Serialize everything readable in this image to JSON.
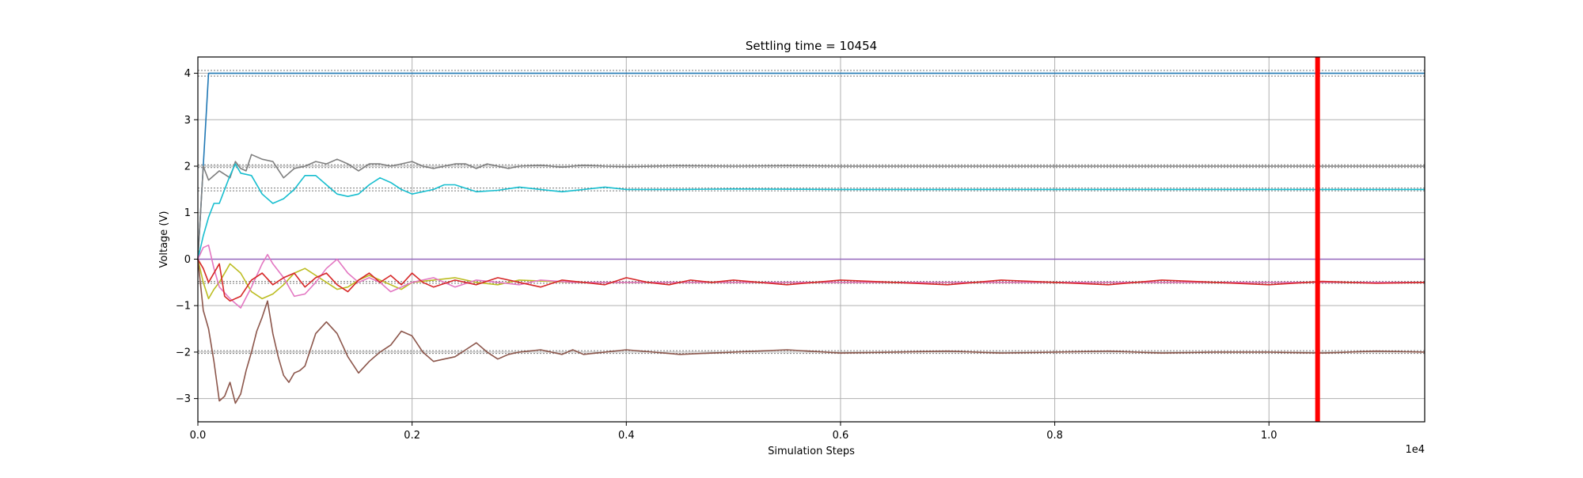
{
  "chart_data": {
    "type": "line",
    "title": "Settling time = 10454",
    "xlabel": "Simulation Steps",
    "ylabel": "Voltage (V)",
    "x_offset_label": "1e4",
    "xlim": [
      0,
      11454
    ],
    "ylim": [
      -3.5,
      4.35
    ],
    "grid": true,
    "legend": "none",
    "x_ticks": [
      {
        "value": 0,
        "label": "0.0"
      },
      {
        "value": 2000,
        "label": "0.2"
      },
      {
        "value": 4000,
        "label": "0.4"
      },
      {
        "value": 6000,
        "label": "0.6"
      },
      {
        "value": 8000,
        "label": "0.8"
      },
      {
        "value": 10000,
        "label": "1.0"
      }
    ],
    "y_ticks": [
      {
        "value": -3,
        "label": "−3"
      },
      {
        "value": -2,
        "label": "−2"
      },
      {
        "value": -1,
        "label": "−1"
      },
      {
        "value": 0,
        "label": "0"
      },
      {
        "value": 1,
        "label": "1"
      },
      {
        "value": 2,
        "label": "2"
      },
      {
        "value": 3,
        "label": "3"
      },
      {
        "value": 4,
        "label": "4"
      }
    ],
    "settling_line": {
      "x": 10454,
      "color": "#ff0000"
    },
    "tolerance_bands": [
      {
        "lower": 3.94,
        "upper": 4.06
      },
      {
        "lower": 1.97,
        "upper": 2.03
      },
      {
        "lower": 1.47,
        "upper": 1.53
      },
      {
        "lower": -0.52,
        "upper": -0.48
      },
      {
        "lower": -2.03,
        "upper": -1.97
      }
    ],
    "series": [
      {
        "color": "#1f77b4",
        "x": [
          0,
          50,
          100,
          200,
          400,
          1000,
          3000,
          6000,
          9000,
          11454
        ],
        "y": [
          0,
          2.0,
          4.0,
          4.0,
          4.0,
          4.0,
          4.0,
          4.0,
          4.0,
          4.0
        ]
      },
      {
        "color": "#7f7f7f",
        "x": [
          0,
          50,
          100,
          200,
          300,
          350,
          400,
          450,
          500,
          600,
          700,
          800,
          900,
          1000,
          1100,
          1200,
          1300,
          1400,
          1500,
          1600,
          1700,
          1800,
          1900,
          2000,
          2100,
          2200,
          2300,
          2400,
          2500,
          2600,
          2700,
          2800,
          2900,
          3000,
          3200,
          3400,
          3600,
          3800,
          4000,
          4500,
          5000,
          5500,
          6000,
          7000,
          8000,
          9000,
          10000,
          11454
        ],
        "y": [
          0,
          2.0,
          1.7,
          1.9,
          1.75,
          2.1,
          1.95,
          1.9,
          2.25,
          2.15,
          2.1,
          1.75,
          1.95,
          2.0,
          2.1,
          2.05,
          2.15,
          2.05,
          1.9,
          2.05,
          2.05,
          2.0,
          2.05,
          2.1,
          2.0,
          1.95,
          2.0,
          2.05,
          2.05,
          1.95,
          2.05,
          2.0,
          1.95,
          2.0,
          2.02,
          1.98,
          2.02,
          2.0,
          1.99,
          2.01,
          2.0,
          2.01,
          2.0,
          2.0,
          2.0,
          2.0,
          2.0,
          2.0
        ]
      },
      {
        "color": "#17becf",
        "x": [
          0,
          50,
          100,
          150,
          200,
          300,
          350,
          400,
          500,
          600,
          700,
          800,
          900,
          1000,
          1100,
          1200,
          1300,
          1400,
          1500,
          1600,
          1700,
          1800,
          1900,
          2000,
          2200,
          2300,
          2400,
          2600,
          2800,
          3000,
          3200,
          3400,
          3600,
          3800,
          4000,
          4500,
          5000,
          6000,
          7000,
          8000,
          9000,
          10000,
          11454
        ],
        "y": [
          0,
          0.5,
          0.9,
          1.2,
          1.2,
          1.8,
          2.05,
          1.85,
          1.8,
          1.4,
          1.2,
          1.3,
          1.5,
          1.8,
          1.8,
          1.6,
          1.4,
          1.35,
          1.4,
          1.6,
          1.75,
          1.65,
          1.5,
          1.4,
          1.5,
          1.6,
          1.6,
          1.45,
          1.48,
          1.55,
          1.5,
          1.45,
          1.5,
          1.55,
          1.5,
          1.5,
          1.51,
          1.5,
          1.5,
          1.5,
          1.5,
          1.5,
          1.5
        ]
      },
      {
        "color": "#9467bd",
        "x": [
          0,
          2000,
          6000,
          11454
        ],
        "y": [
          0,
          0,
          0,
          0
        ]
      },
      {
        "color": "#bcbd22",
        "x": [
          0,
          50,
          100,
          150,
          200,
          300,
          400,
          500,
          600,
          700,
          800,
          900,
          1000,
          1100,
          1200,
          1300,
          1400,
          1500,
          1600,
          1700,
          1800,
          1900,
          2000,
          2200,
          2400,
          2600,
          2800,
          3000,
          3500,
          4000,
          5000,
          6000,
          8000,
          10000,
          11454
        ],
        "y": [
          0,
          -0.5,
          -0.85,
          -0.65,
          -0.5,
          -0.1,
          -0.3,
          -0.7,
          -0.85,
          -0.75,
          -0.55,
          -0.3,
          -0.2,
          -0.35,
          -0.5,
          -0.65,
          -0.6,
          -0.45,
          -0.35,
          -0.45,
          -0.55,
          -0.65,
          -0.5,
          -0.45,
          -0.4,
          -0.5,
          -0.55,
          -0.45,
          -0.5,
          -0.5,
          -0.5,
          -0.5,
          -0.5,
          -0.5,
          -0.5
        ]
      },
      {
        "color": "#e377c2",
        "x": [
          0,
          50,
          100,
          150,
          200,
          300,
          400,
          500,
          600,
          650,
          700,
          800,
          900,
          1000,
          1100,
          1200,
          1300,
          1400,
          1500,
          1600,
          1700,
          1800,
          2000,
          2200,
          2400,
          2600,
          2800,
          3000,
          3200,
          3500,
          4000,
          4500,
          5000,
          6000,
          8000,
          10000,
          11454
        ],
        "y": [
          0,
          0.25,
          0.3,
          -0.2,
          -0.6,
          -0.85,
          -1.05,
          -0.6,
          -0.1,
          0.1,
          -0.1,
          -0.4,
          -0.8,
          -0.75,
          -0.5,
          -0.2,
          0.0,
          -0.3,
          -0.5,
          -0.4,
          -0.5,
          -0.7,
          -0.5,
          -0.4,
          -0.6,
          -0.45,
          -0.5,
          -0.55,
          -0.45,
          -0.5,
          -0.5,
          -0.5,
          -0.5,
          -0.5,
          -0.5,
          -0.5,
          -0.5
        ]
      },
      {
        "color": "#d62728",
        "x": [
          0,
          50,
          100,
          200,
          250,
          300,
          400,
          500,
          600,
          700,
          800,
          900,
          1000,
          1100,
          1200,
          1300,
          1400,
          1500,
          1600,
          1700,
          1800,
          1900,
          2000,
          2100,
          2200,
          2400,
          2600,
          2800,
          3000,
          3200,
          3400,
          3600,
          3800,
          4000,
          4200,
          4400,
          4600,
          4800,
          5000,
          5500,
          6000,
          6500,
          7000,
          7500,
          8000,
          8500,
          9000,
          9500,
          10000,
          10500,
          11000,
          11454
        ],
        "y": [
          0,
          -0.2,
          -0.5,
          -0.1,
          -0.8,
          -0.9,
          -0.8,
          -0.45,
          -0.3,
          -0.55,
          -0.4,
          -0.3,
          -0.6,
          -0.4,
          -0.3,
          -0.55,
          -0.7,
          -0.45,
          -0.3,
          -0.5,
          -0.35,
          -0.55,
          -0.3,
          -0.5,
          -0.6,
          -0.45,
          -0.55,
          -0.4,
          -0.5,
          -0.6,
          -0.45,
          -0.5,
          -0.55,
          -0.4,
          -0.5,
          -0.55,
          -0.45,
          -0.5,
          -0.45,
          -0.55,
          -0.45,
          -0.5,
          -0.55,
          -0.45,
          -0.5,
          -0.55,
          -0.45,
          -0.5,
          -0.55,
          -0.48,
          -0.52,
          -0.5
        ]
      },
      {
        "color": "#8c564b",
        "x": [
          0,
          50,
          100,
          150,
          200,
          250,
          300,
          350,
          400,
          450,
          500,
          550,
          600,
          650,
          700,
          750,
          800,
          850,
          900,
          950,
          1000,
          1100,
          1200,
          1300,
          1400,
          1500,
          1600,
          1700,
          1800,
          1900,
          2000,
          2100,
          2200,
          2300,
          2400,
          2500,
          2600,
          2700,
          2800,
          2900,
          3000,
          3200,
          3400,
          3500,
          3600,
          3800,
          4000,
          4500,
          5000,
          5500,
          6000,
          6500,
          7000,
          7500,
          8000,
          8500,
          9000,
          9500,
          10000,
          10500,
          11000,
          11454
        ],
        "y": [
          0,
          -1.1,
          -1.5,
          -2.2,
          -3.05,
          -2.95,
          -2.65,
          -3.1,
          -2.9,
          -2.4,
          -2.0,
          -1.55,
          -1.25,
          -0.9,
          -1.6,
          -2.1,
          -2.5,
          -2.65,
          -2.45,
          -2.4,
          -2.3,
          -1.6,
          -1.35,
          -1.6,
          -2.1,
          -2.45,
          -2.2,
          -2.0,
          -1.85,
          -1.55,
          -1.65,
          -2.0,
          -2.2,
          -2.15,
          -2.1,
          -1.95,
          -1.8,
          -2.0,
          -2.15,
          -2.05,
          -2.0,
          -1.95,
          -2.05,
          -1.95,
          -2.05,
          -2.0,
          -1.95,
          -2.05,
          -2.0,
          -1.95,
          -2.02,
          -2.0,
          -1.98,
          -2.02,
          -2.0,
          -1.98,
          -2.02,
          -2.0,
          -2.0,
          -2.02,
          -1.98,
          -2.0
        ]
      }
    ]
  }
}
